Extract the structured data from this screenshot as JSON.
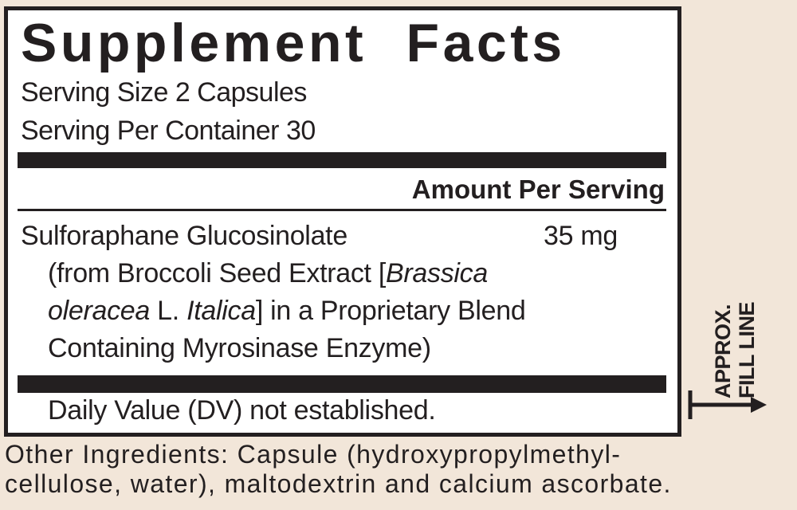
{
  "label": {
    "title": "Supplement Facts",
    "serving_size": "Serving Size 2 Capsules",
    "servings_per_container": "Serving Per Container 30",
    "amount_header": "Amount Per Serving",
    "ingredient": {
      "name": "Sulforaphane Glucosinolate",
      "amount": "35 mg",
      "source_1": "(from Broccoli Seed Extract [",
      "source_1_italic": "Brassica",
      "source_2_italic": "oleracea",
      "source_2_mid": " L. ",
      "source_2_italic2": "Italica",
      "source_2_end": "] in a Proprietary Blend",
      "source_3": "Containing Myrosinase Enzyme)"
    },
    "daily_value_note": "Daily Value (DV) not established."
  },
  "fill_line": {
    "line1": "APPROX.",
    "line2": "FILL LINE"
  },
  "other_ingredients": {
    "line1": "Other Ingredients: Capsule (hydroxypropylmethyl-",
    "line2": "cellulose, water), maltodextrin and calcium ascorbate."
  },
  "colors": {
    "background": "#f2e6d9",
    "ink": "#231f20",
    "panel": "#ffffff"
  }
}
